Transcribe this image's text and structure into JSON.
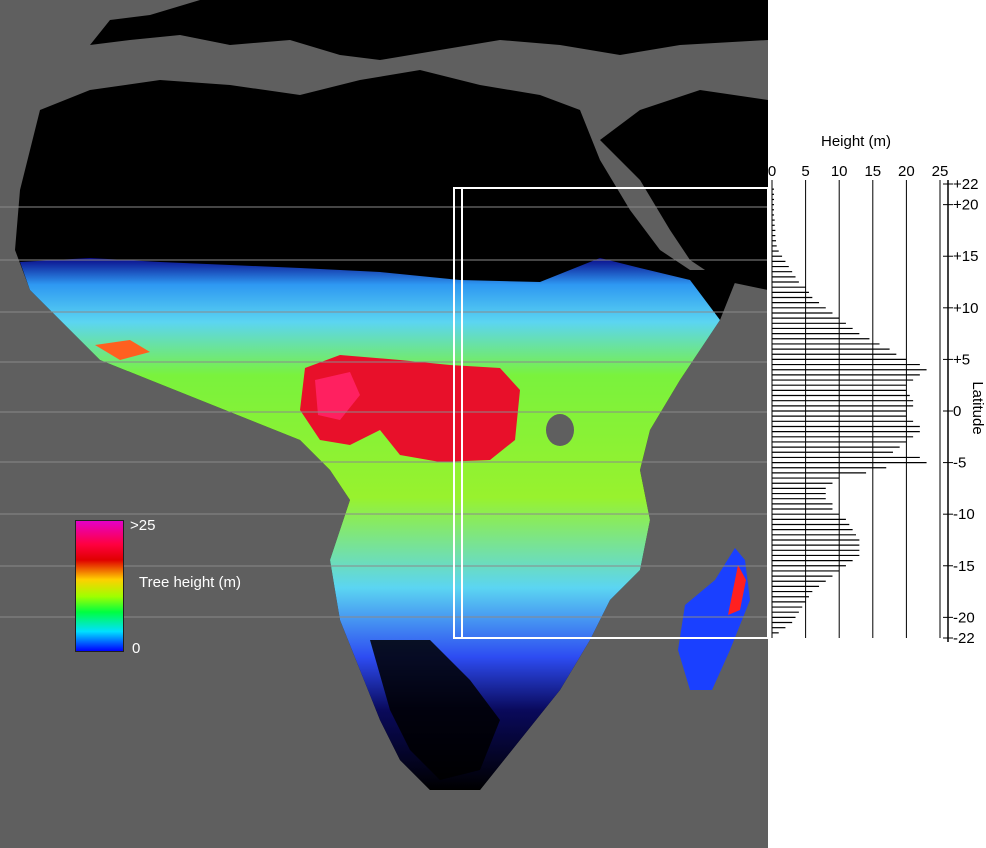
{
  "legend": {
    "title": "Tree height (m)",
    "max_label": ">25",
    "min_label": "0",
    "colors": [
      "#e400c8",
      "#ff0040",
      "#e00000",
      "#ffd000",
      "#a0ff00",
      "#00ff40",
      "#00e0ff",
      "#0000ff"
    ]
  },
  "colors": {
    "ocean": "#5f5f5f",
    "land_no_trees": "#000000",
    "gridline": "#8a8a8a",
    "frame": "#ffffff"
  },
  "chart_data": {
    "type": "bar",
    "orientation": "horizontal",
    "xlabel": "Height (m)",
    "ylabel": "Latitude",
    "xlim": [
      0,
      25
    ],
    "ylim": [
      -22,
      22
    ],
    "x_ticks": [
      "0",
      "5",
      "10",
      "15",
      "20",
      "25"
    ],
    "y_ticks": [
      "+22",
      "+20",
      "+15",
      "+10",
      "+5",
      "0",
      "-5",
      "-10",
      "-15",
      "-20",
      "-22"
    ],
    "y_tick_values": [
      22,
      20,
      15,
      10,
      5,
      0,
      -5,
      -10,
      -15,
      -20,
      -22
    ],
    "latitudes": [
      21.5,
      21,
      20.5,
      20,
      19.5,
      19,
      18.5,
      18,
      17.5,
      17,
      16.5,
      16,
      15.5,
      15,
      14.5,
      14,
      13.5,
      13,
      12.5,
      12,
      11.5,
      11,
      10.5,
      10,
      9.5,
      9,
      8.5,
      8,
      7.5,
      7,
      6.5,
      6,
      5.5,
      5,
      4.5,
      4,
      3.5,
      3,
      2.5,
      2,
      1.5,
      1,
      0.5,
      0,
      -0.5,
      -1,
      -1.5,
      -2,
      -2.5,
      -3,
      -3.5,
      -4,
      -4.5,
      -5,
      -5.5,
      -6,
      -6.5,
      -7,
      -7.5,
      -8,
      -8.5,
      -9,
      -9.5,
      -10,
      -10.5,
      -11,
      -11.5,
      -12,
      -12.5,
      -13,
      -13.5,
      -14,
      -14.5,
      -15,
      -15.5,
      -16,
      -16.5,
      -17,
      -17.5,
      -18,
      -18.5,
      -19,
      -19.5,
      -20,
      -20.5,
      -21,
      -21.5
    ],
    "values": [
      0.3,
      0.3,
      0.3,
      0.3,
      0.3,
      0.3,
      0.4,
      0.4,
      0.5,
      0.5,
      0.6,
      0.7,
      1,
      1.5,
      2,
      2.5,
      3,
      3.5,
      4,
      5,
      5.5,
      6,
      7,
      8,
      9,
      10,
      11,
      12,
      13,
      14.5,
      16,
      17.5,
      18.5,
      20,
      22,
      23,
      22,
      21,
      20,
      20,
      20.5,
      21,
      21,
      20,
      20,
      21,
      22,
      22,
      21,
      20,
      19,
      18,
      22,
      23,
      17,
      14,
      10,
      9,
      8,
      8,
      8,
      9,
      9,
      10,
      11,
      11.5,
      12,
      12.5,
      13,
      13,
      13,
      13,
      12,
      11,
      10,
      9,
      8,
      7,
      6,
      5.5,
      5,
      4.5,
      4,
      3.5,
      3,
      2,
      1
    ]
  }
}
